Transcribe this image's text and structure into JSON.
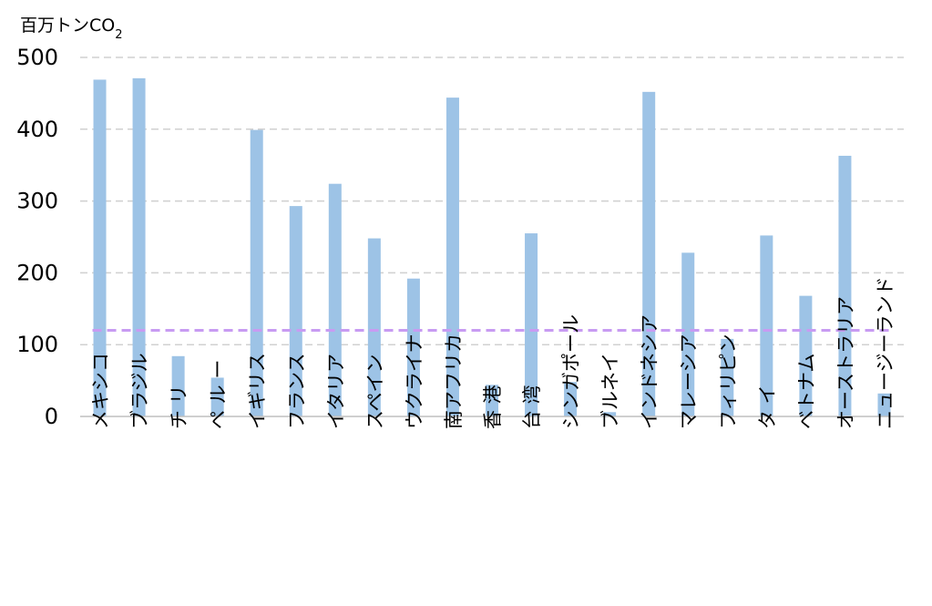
{
  "chart_data": {
    "type": "bar",
    "unit_label": "百万トン",
    "unit_label_co": "CO",
    "unit_label_sub": "2",
    "categories": [
      "メキシコ",
      "ブラジル",
      "チ リ",
      "ペ ル ー",
      "イギリス",
      "フランス",
      "イタリア",
      "スペイン",
      "ウクライナ",
      "南アフリカ",
      "香 港",
      "台 湾",
      "シンガポール",
      "ブルネイ",
      "インドネシア",
      "マレーシア",
      "フィリピン",
      "タ イ",
      "ベトナム",
      "オーストラリア",
      "ニュージーランド"
    ],
    "values": [
      469,
      471,
      84,
      54,
      399,
      293,
      324,
      248,
      192,
      444,
      44,
      255,
      48,
      6,
      452,
      228,
      108,
      252,
      168,
      363,
      32
    ],
    "reference_line": 120,
    "ylim": [
      0,
      500
    ],
    "yticks": [
      0,
      100,
      200,
      300,
      400,
      500
    ],
    "grid": true,
    "colors": {
      "bar": "#9dc3e6",
      "reference": "#c89bf2",
      "grid": "#d0d0d0",
      "axis": "#bfbfbf"
    }
  }
}
